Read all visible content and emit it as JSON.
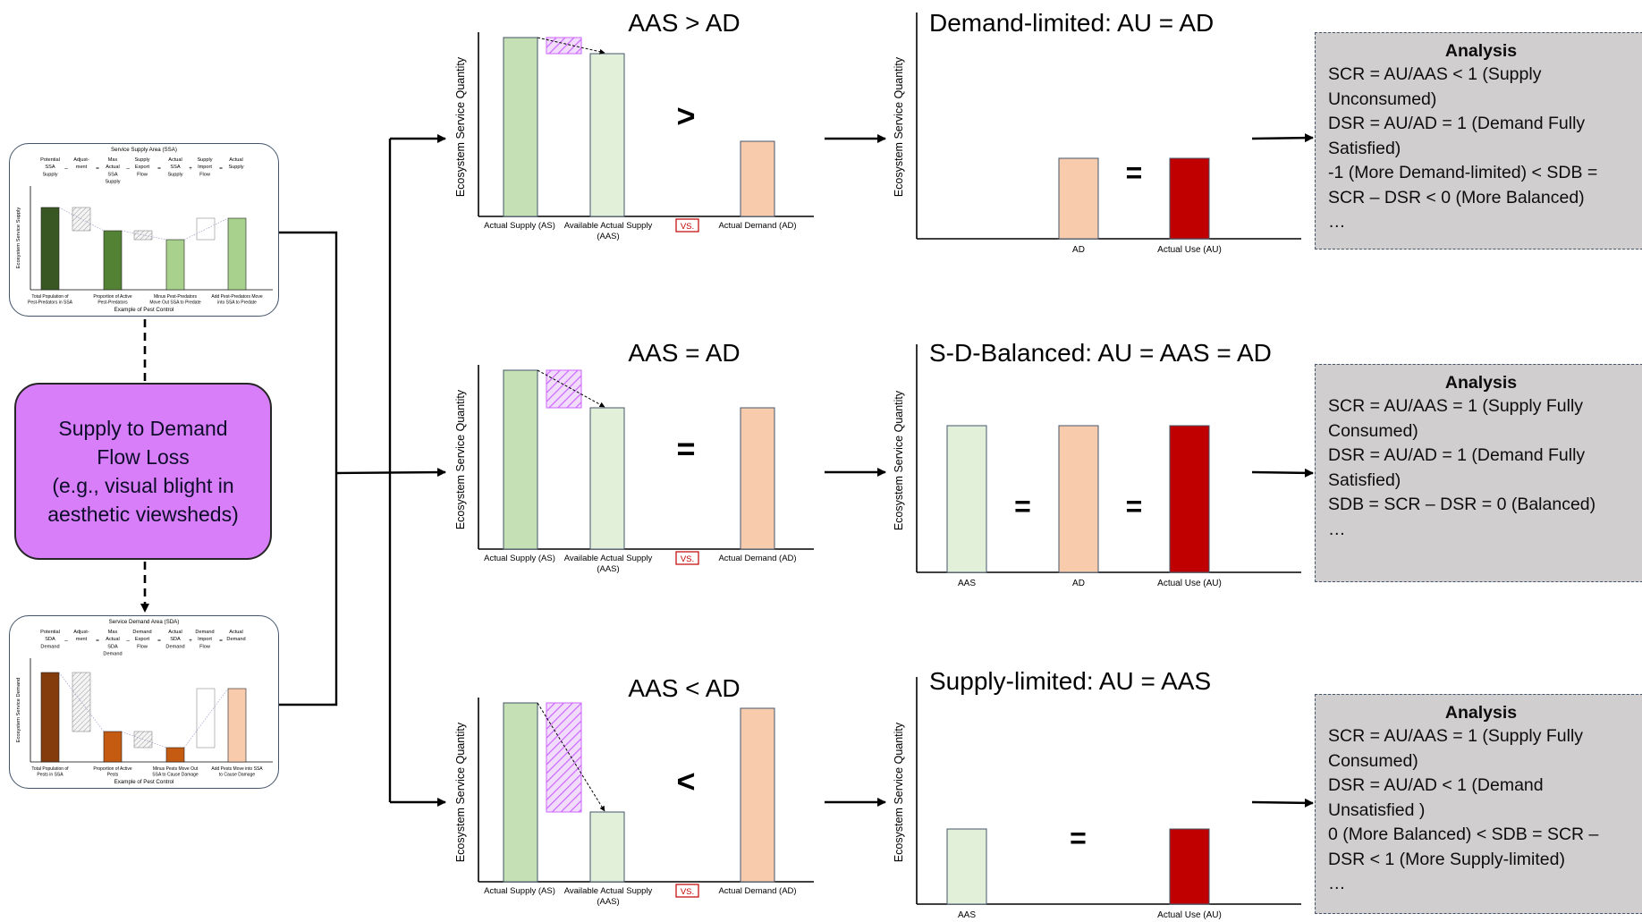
{
  "supply_card": {
    "title": "Service Supply Area (SSA)",
    "ylabel": "Ecosystem Service Supply",
    "footer": "Example of Pest Control",
    "terms": [
      [
        "Potential",
        "SSA",
        "Supply"
      ],
      [
        "Adjust-",
        "ment"
      ],
      [
        "Max",
        "Actual",
        "SSA",
        "Supply"
      ],
      [
        "Supply",
        "Export",
        "Flow"
      ],
      [
        "Actual",
        "SSA",
        "Supply"
      ],
      [
        "Supply",
        "Import",
        "Flow"
      ],
      [
        "Actual",
        "Supply"
      ]
    ],
    "operators": [
      "–",
      "=",
      "–",
      "=",
      "+",
      "="
    ],
    "xlabels": [
      [
        "Total Population of",
        "Pest-Predators in SSA"
      ],
      [
        "Proportion of Active",
        "Pest-Predators"
      ],
      [
        "Minus Pest-Predators",
        "Move Out SSA to Predate"
      ],
      [
        "Add Pest-Predators Move",
        "into SSA to Predate"
      ]
    ]
  },
  "demand_card": {
    "title": "Service Demand Area (SDA)",
    "ylabel": "Ecosystem Service Demand",
    "footer": "Example of Pest Control",
    "terms": [
      [
        "Potential",
        "SDA",
        "Demand"
      ],
      [
        "Adjust-",
        "ment"
      ],
      [
        "Max",
        "Actual",
        "SDA",
        "Demand"
      ],
      [
        "Demand",
        "Export",
        "Flow"
      ],
      [
        "Actual",
        "SDA",
        "Demand"
      ],
      [
        "Demand",
        "Import",
        "Flow"
      ],
      [
        "Actual",
        "Demand"
      ]
    ],
    "operators": [
      "–",
      "=",
      "–",
      "=",
      "+",
      "="
    ],
    "xlabels": [
      [
        "Total Population of",
        "Pests in SSA"
      ],
      [
        "Proportion of Active",
        "Pests"
      ],
      [
        "Minus Pests Move Out",
        "SSA to Cause Damage"
      ],
      [
        "Add Pests Move into SSA",
        "to Cause Damage"
      ]
    ]
  },
  "center_box": {
    "lines": [
      "Supply to Demand",
      "Flow Loss",
      "(e.g., visual blight in",
      "aesthetic viewsheds)"
    ]
  },
  "comparison_panels": [
    {
      "title": "AAS > AD",
      "symbol": ">",
      "ylabel": "Ecosystem Service Quantity",
      "xlabels": [
        [
          "Actual Supply (AS)"
        ],
        [
          "Available Actual Supply",
          "(AAS)"
        ],
        [
          "Actual Demand (AD)"
        ]
      ],
      "vs_label": "VS.",
      "values": {
        "AS": 10,
        "AAS": 9.1,
        "loss": 0.9,
        "AD": 4.2
      }
    },
    {
      "title": "AAS = AD",
      "symbol": "=",
      "ylabel": "Ecosystem Service Quantity",
      "xlabels": [
        [
          "Actual Supply (AS)"
        ],
        [
          "Available Actual Supply",
          "(AAS)"
        ],
        [
          "Actual Demand (AD)"
        ]
      ],
      "vs_label": "VS.",
      "values": {
        "AS": 10,
        "AAS": 7.9,
        "loss": 2.1,
        "AD": 7.9
      }
    },
    {
      "title": "AAS < AD",
      "symbol": "<",
      "ylabel": "Ecosystem Service Quantity",
      "xlabels": [
        [
          "Actual Supply (AS)"
        ],
        [
          "Available Actual Supply",
          "(AAS)"
        ],
        [
          "Actual Demand (AD)"
        ]
      ],
      "vs_label": "VS.",
      "values": {
        "AS": 10,
        "AAS": 3.9,
        "loss": 6.1,
        "AD": 9.7
      }
    }
  ],
  "use_panels": [
    {
      "title": "Demand-limited: AU = AD",
      "ylabel": "Ecosystem Service Quantity",
      "bars": [
        {
          "label": "AD",
          "value": 4.5,
          "color": "#f8cbad"
        },
        {
          "label": "Actual Use (AU)",
          "value": 4.5,
          "color": "#c00000"
        }
      ],
      "symbols": [
        "="
      ]
    },
    {
      "title": "S-D-Balanced: AU = AAS = AD",
      "ylabel": "Ecosystem Service Quantity",
      "bars": [
        {
          "label": "AAS",
          "value": 8.2,
          "color": "#e2f0d9"
        },
        {
          "label": "AD",
          "value": 8.2,
          "color": "#f8cbad"
        },
        {
          "label": "Actual Use (AU)",
          "value": 8.2,
          "color": "#c00000"
        }
      ],
      "symbols": [
        "=",
        "="
      ]
    },
    {
      "title": "Supply-limited: AU = AAS",
      "ylabel": "Ecosystem Service Quantity",
      "bars": [
        {
          "label": "AAS",
          "value": 4.2,
          "color": "#e2f0d9"
        },
        {
          "label": "Actual Use (AU)",
          "value": 4.2,
          "color": "#c00000"
        }
      ],
      "symbols": [
        "="
      ]
    }
  ],
  "analysis_boxes": [
    {
      "title": "Analysis",
      "lines": [
        "SCR = AU/AAS < 1 (Supply Unconsumed)",
        "DSR = AU/AD = 1 (Demand Fully Satisfied)",
        "-1 (More Demand-limited) < SDB = SCR – DSR < 0 (More Balanced)",
        "…"
      ]
    },
    {
      "title": "Analysis",
      "lines": [
        "SCR = AU/AAS = 1 (Supply Fully Consumed)",
        "DSR = AU/AD = 1 (Demand Fully Satisfied)",
        "SDB = SCR – DSR = 0 (Balanced)",
        "…"
      ]
    },
    {
      "title": "Analysis",
      "lines": [
        "SCR = AU/AAS = 1 (Supply Fully Consumed)",
        "DSR = AU/AD < 1 (Demand Unsatisfied )",
        "0 (More Balanced) < SDB = SCR – DSR < 1 (More Supply-limited)",
        "…"
      ]
    }
  ],
  "colors": {
    "supply_dark": "#385723",
    "supply_mid": "#548235",
    "supply_light": "#a9d18e",
    "supply_pale": "#c5e0b4",
    "aas_pale": "#e2f0d9",
    "demand_dark": "#843c0c",
    "demand_mid": "#c55a11",
    "demand_light": "#f4b183",
    "demand_pale": "#f8cbad",
    "actual_use": "#c00000",
    "loss_hatch": "#cc66ff",
    "center_box": "#d87ef8",
    "analysis_bg": "#d0cece"
  }
}
